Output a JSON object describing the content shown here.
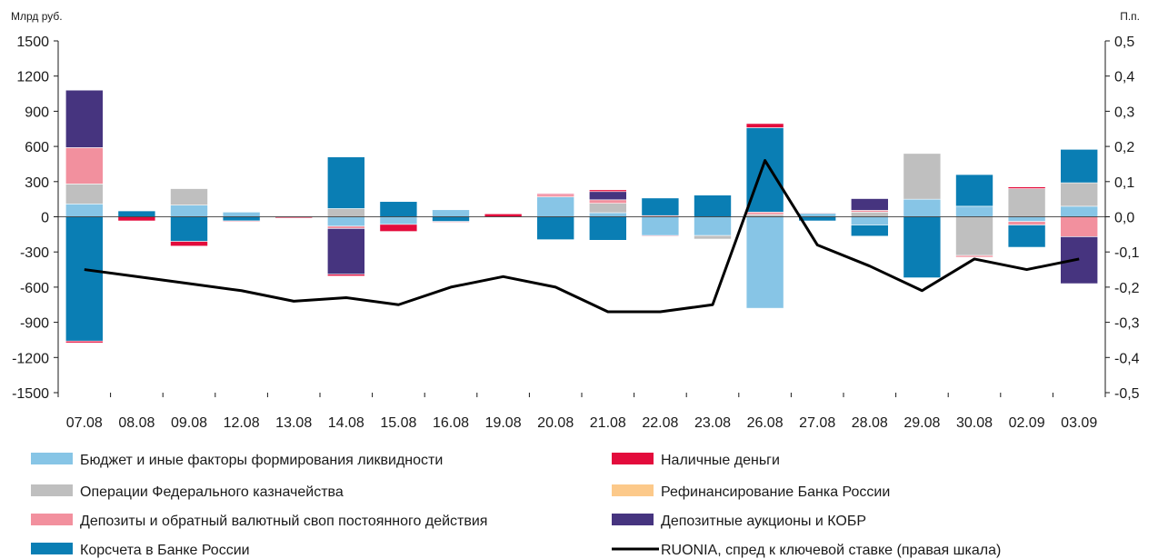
{
  "chart_data": {
    "type": "bar",
    "stacked": true,
    "left_axis_unit": "Млрд руб.",
    "right_axis_unit": "П.п.",
    "ylim": [
      -1500,
      1500
    ],
    "y_ticks": [
      1500,
      1200,
      900,
      600,
      300,
      0,
      -300,
      -600,
      -900,
      -1200,
      -1500
    ],
    "y_tick_labels": [
      "1500",
      "1200",
      "900",
      "600",
      "300",
      "0",
      "-300",
      "-600",
      "-900",
      "-1200",
      "-1500"
    ],
    "y2lim": [
      -0.5,
      0.5
    ],
    "y2_ticks": [
      0.5,
      0.4,
      0.3,
      0.2,
      0.1,
      0.0,
      -0.1,
      -0.2,
      -0.3,
      -0.4,
      -0.5
    ],
    "y2_tick_labels": [
      "0,5",
      "0,4",
      "0,3",
      "0,2",
      "0,1",
      "0,0",
      "-0,1",
      "-0,2",
      "-0,3",
      "-0,4",
      "-0,5"
    ],
    "categories": [
      "07.08",
      "08.08",
      "09.08",
      "12.08",
      "13.08",
      "14.08",
      "15.08",
      "16.08",
      "19.08",
      "20.08",
      "21.08",
      "22.08",
      "23.08",
      "26.08",
      "27.08",
      "28.08",
      "29.08",
      "30.08",
      "02.09",
      "03.09"
    ],
    "series": [
      {
        "name": "Бюджет и иные факторы формирования ликвидности",
        "color": "#87c5e6",
        "values": [
          110,
          0,
          100,
          40,
          0,
          -80,
          -65,
          60,
          0,
          170,
          35,
          -160,
          -160,
          -780,
          30,
          -70,
          150,
          90,
          -40,
          90
        ]
      },
      {
        "name": "Операции Федерального казначейства",
        "color": "#bfbfbf",
        "values": [
          170,
          0,
          140,
          0,
          0,
          70,
          0,
          0,
          0,
          0,
          80,
          0,
          -30,
          20,
          0,
          40,
          390,
          -330,
          240,
          200
        ]
      },
      {
        "name": "Депозиты и обратный валютный своп постоянного действия",
        "color": "#f2909e",
        "values": [
          310,
          0,
          0,
          0,
          0,
          -20,
          0,
          0,
          0,
          15,
          30,
          10,
          0,
          20,
          5,
          15,
          0,
          -15,
          -30,
          -170
        ]
      },
      {
        "name": "Депозитные аукционы и КОБР",
        "color": "#46347f",
        "values": [
          490,
          0,
          0,
          0,
          0,
          -390,
          0,
          0,
          0,
          0,
          70,
          0,
          0,
          0,
          0,
          100,
          0,
          0,
          0,
          -400
        ]
      },
      {
        "name": "Корсчета в Банке России",
        "color": "#0a7eb4",
        "values": [
          -1060,
          50,
          -210,
          -35,
          0,
          440,
          130,
          -40,
          0,
          -195,
          -200,
          150,
          185,
          720,
          -35,
          -95,
          -520,
          270,
          -190,
          285
        ]
      },
      {
        "name": "Наличные деньги",
        "color": "#e30c3c",
        "values": [
          -15,
          -35,
          -40,
          -5,
          -10,
          -15,
          -60,
          -5,
          25,
          10,
          15,
          -5,
          0,
          35,
          0,
          0,
          0,
          0,
          15,
          0
        ]
      },
      {
        "name": "Рефинансирование Банка России",
        "color": "#fcc98a",
        "values": [
          0,
          0,
          0,
          0,
          0,
          0,
          0,
          0,
          0,
          0,
          0,
          0,
          0,
          0,
          0,
          0,
          0,
          0,
          0,
          0
        ]
      }
    ],
    "line": {
      "name": "RUONIA, спред к ключевой ставке (правая шкала)",
      "color": "#000000",
      "axis": "right",
      "values": [
        -0.15,
        -0.17,
        -0.19,
        -0.21,
        -0.24,
        -0.23,
        -0.25,
        -0.2,
        -0.17,
        -0.2,
        -0.27,
        -0.27,
        -0.25,
        0.16,
        -0.08,
        -0.14,
        -0.21,
        -0.12,
        -0.15,
        -0.12
      ]
    },
    "legend": [
      {
        "label": "Бюджет и иные факторы формирования ликвидности",
        "color": "#87c5e6",
        "kind": "bar"
      },
      {
        "label": "Наличные деньги",
        "color": "#e30c3c",
        "kind": "bar"
      },
      {
        "label": "Операции Федерального казначейства",
        "color": "#bfbfbf",
        "kind": "bar"
      },
      {
        "label": "Рефинансирование Банка России",
        "color": "#fcc98a",
        "kind": "bar"
      },
      {
        "label": "Депозиты и обратный валютный своп постоянного действия",
        "color": "#f2909e",
        "kind": "bar"
      },
      {
        "label": "Депозитные аукционы и КОБР",
        "color": "#46347f",
        "kind": "bar"
      },
      {
        "label": "Корсчета в Банке России",
        "color": "#0a7eb4",
        "kind": "bar"
      },
      {
        "label": "RUONIA, спред к ключевой ставке (правая шкала)",
        "color": "#000000",
        "kind": "line"
      }
    ],
    "legend_placement": "bottom",
    "grid": false
  }
}
